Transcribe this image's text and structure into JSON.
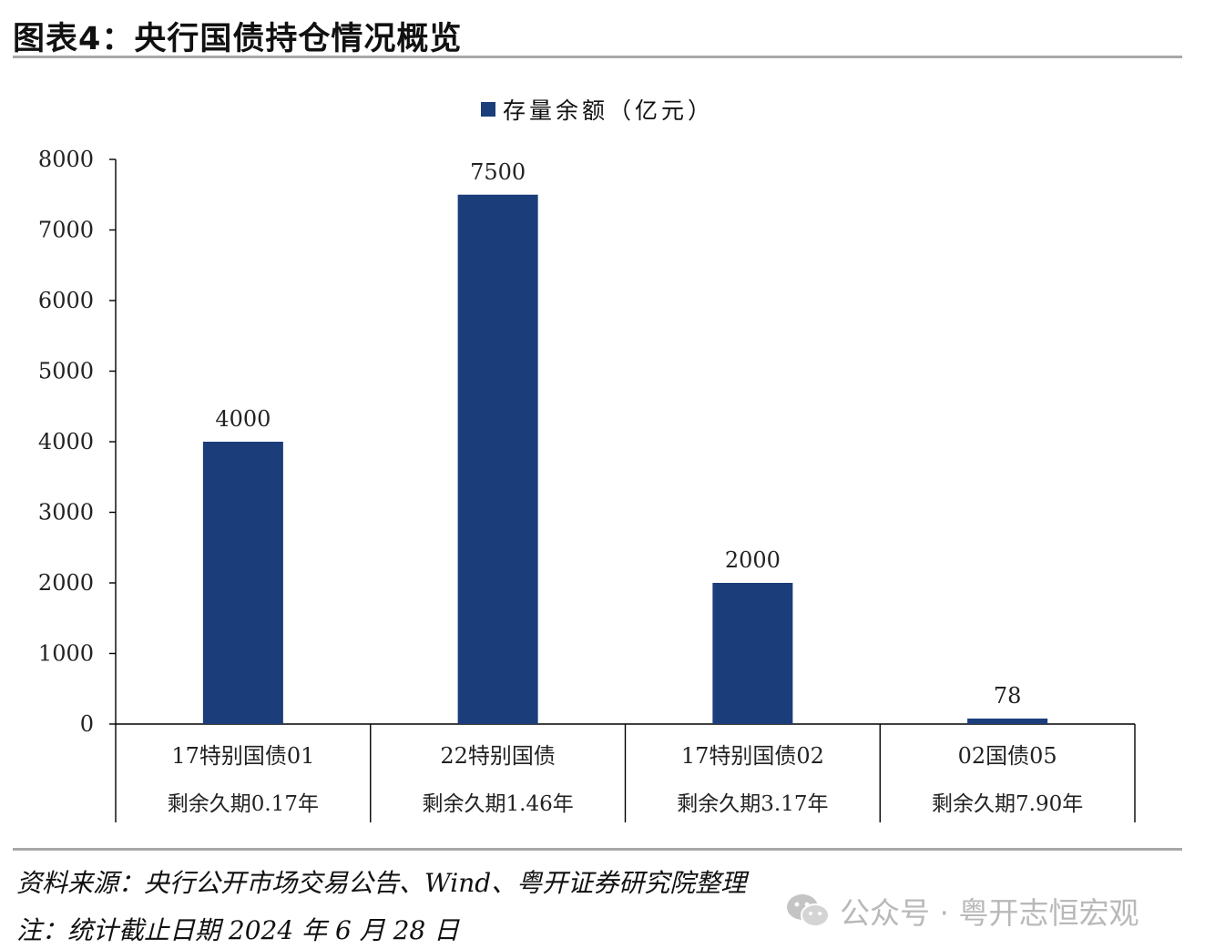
{
  "figure": {
    "title": "图表4：央行国债持仓情况概览"
  },
  "legend": {
    "label": "存量余额（亿元）",
    "color": "#1b3d7a"
  },
  "chart_data": {
    "type": "bar",
    "categories": [
      [
        "17特别国债01",
        "剩余久期0.17年"
      ],
      [
        "22特别国债",
        "剩余久期1.46年"
      ],
      [
        "17特别国债02",
        "剩余久期3.17年"
      ],
      [
        "02国债05",
        "剩余久期7.90年"
      ]
    ],
    "series": [
      {
        "name": "存量余额（亿元）",
        "values": [
          4000,
          7500,
          2000,
          78
        ],
        "color": "#1b3d7a"
      }
    ],
    "data_labels": [
      "4000",
      "7500",
      "2000",
      "78"
    ],
    "ylim": [
      0,
      8000
    ],
    "yticks": [
      0,
      1000,
      2000,
      3000,
      4000,
      5000,
      6000,
      7000,
      8000
    ],
    "grid": false,
    "legend_position": "top-center"
  },
  "notes": {
    "source": "资料来源：央行公开市场交易公告、Wind、粤开证券研究院整理",
    "date": "注：统计截止日期 2024 年 6 月 28 日"
  },
  "watermark": {
    "icon": "wechat-icon",
    "text": "公众号 · 粤开志恒宏观"
  }
}
